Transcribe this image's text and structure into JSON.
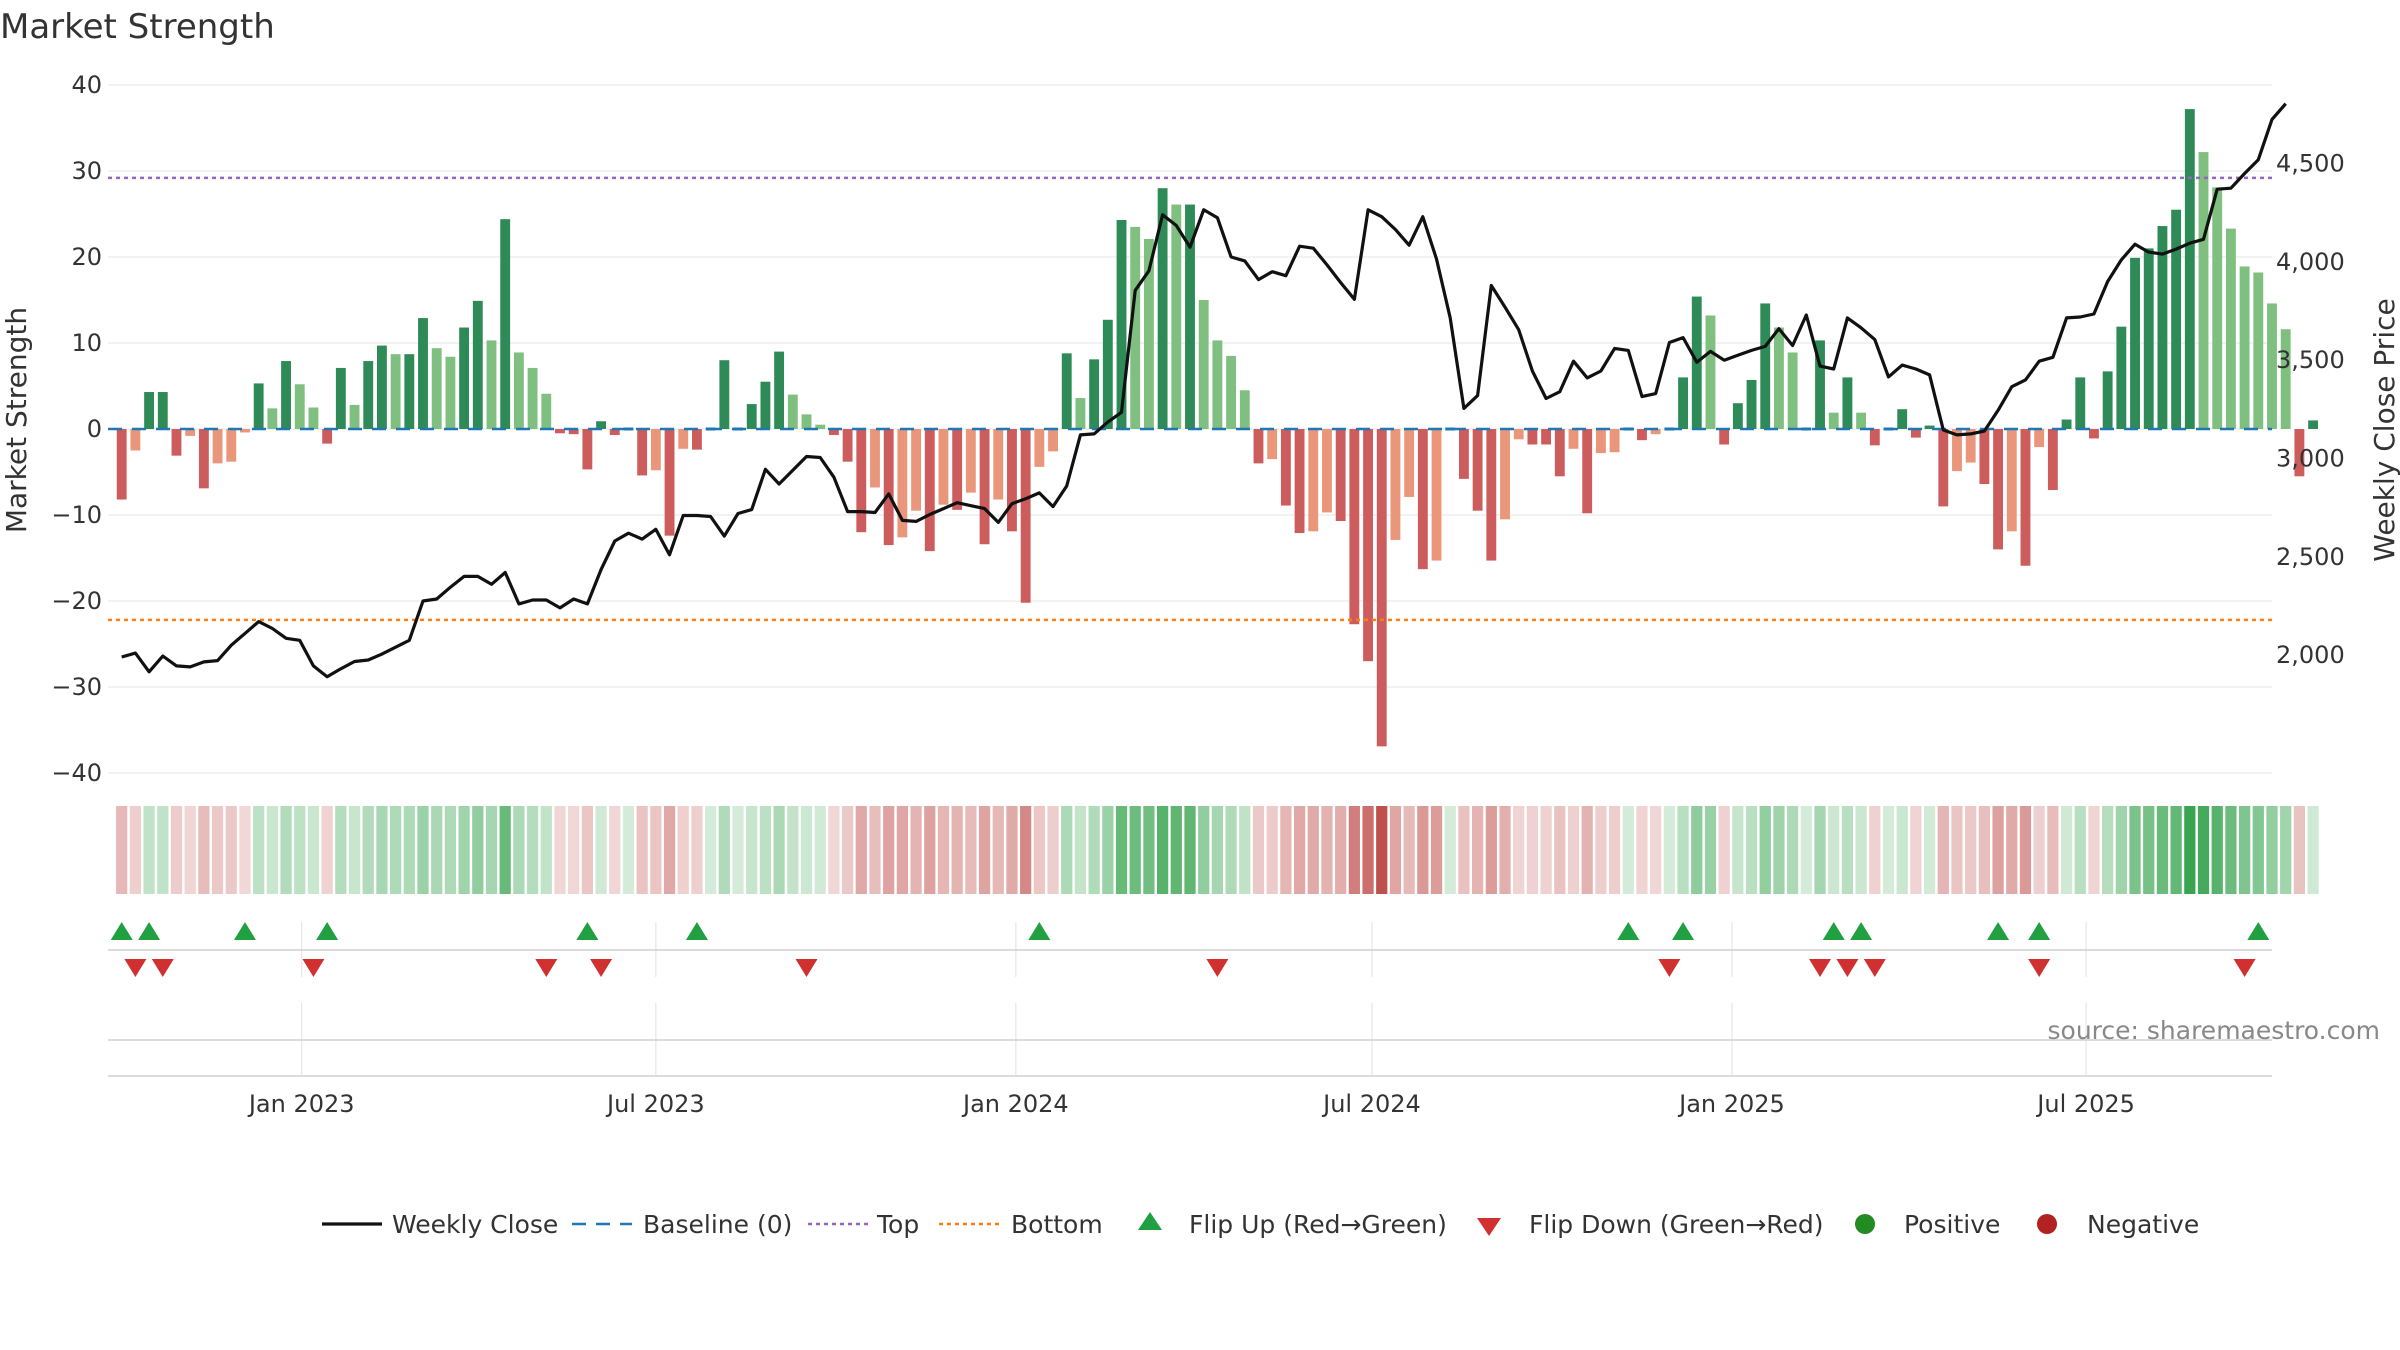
{
  "chart_data": {
    "type": "bar",
    "title": "Market Strength",
    "ylabel": "Market Strength",
    "y2label": "Weekly Close Price",
    "source_text": "source: sharemaestro.com",
    "ylim": [
      -40,
      40
    ],
    "y2lim": [
      1400,
      4900
    ],
    "yticks": [
      40,
      30,
      20,
      10,
      0,
      -10,
      -20,
      -30,
      -40
    ],
    "ytick_labels": [
      "40",
      "30",
      "20",
      "10",
      "0",
      "−10",
      "−20",
      "−30",
      "−40"
    ],
    "y2ticks": [
      4500,
      4000,
      3500,
      3000,
      2500,
      2000
    ],
    "y2tick_labels": [
      "4,500",
      "4,000",
      "3,500",
      "3,000",
      "2,500",
      "2,000"
    ],
    "x_start": "2022-09-24",
    "x_end": "2025-10-04",
    "xticks": [
      {
        "date": "2023-01-01",
        "label": "Jan 2023"
      },
      {
        "date": "2023-07-01",
        "label": "Jul 2023"
      },
      {
        "date": "2024-01-01",
        "label": "Jan 2024"
      },
      {
        "date": "2024-07-01",
        "label": "Jul 2024"
      },
      {
        "date": "2025-01-01",
        "label": "Jan 2025"
      },
      {
        "date": "2025-07-01",
        "label": "Jul 2025"
      }
    ],
    "top_level": 29.2,
    "bottom_level": -22.2,
    "first_week": "2022-10-01",
    "strength": [
      -8.2,
      -2.5,
      4.3,
      4.3,
      -3.1,
      -0.8,
      -6.9,
      -4.0,
      -3.8,
      -0.4,
      5.3,
      2.4,
      7.9,
      5.2,
      2.5,
      -1.7,
      7.1,
      2.8,
      7.9,
      9.7,
      8.7,
      8.7,
      12.9,
      9.4,
      8.4,
      11.8,
      14.9,
      10.3,
      24.4,
      8.9,
      7.1,
      4.1,
      -0.5,
      -0.6,
      -4.7,
      0.9,
      -0.7,
      0.0,
      -5.4,
      -4.8,
      -12.4,
      -2.3,
      -2.4,
      0.0,
      8.0,
      0.0,
      2.9,
      5.5,
      9.0,
      4.0,
      1.7,
      0.5,
      -0.7,
      -3.8,
      -12.0,
      -6.8,
      -13.5,
      -12.6,
      -9.5,
      -14.2,
      -8.8,
      -9.4,
      -7.4,
      -13.4,
      -8.2,
      -11.9,
      -20.2,
      -4.4,
      -2.6,
      8.8,
      3.6,
      8.1,
      12.7,
      24.3,
      23.5,
      22.1,
      28.0,
      26.1,
      26.1,
      15.0,
      10.3,
      8.5,
      4.5,
      -4.0,
      -3.5,
      -8.9,
      -12.1,
      -11.9,
      -9.7,
      -10.7,
      -22.7,
      -27.0,
      -36.9,
      -12.9,
      -7.9,
      -16.3,
      -15.3,
      0.0,
      -5.8,
      -9.5,
      -15.3,
      -10.5,
      -1.2,
      -1.8,
      -1.8,
      -5.5,
      -2.3,
      -9.8,
      -2.8,
      -2.7,
      0.0,
      -1.3,
      -0.6,
      0.0,
      6.0,
      15.4,
      13.2,
      -1.8,
      3.0,
      5.7,
      14.6,
      11.8,
      8.9,
      0.0,
      10.3,
      1.9,
      6.0,
      1.9,
      -1.9,
      0.0,
      2.3,
      -1.0,
      0.4,
      -9.0,
      -4.9,
      -3.9,
      -6.4,
      -14.0,
      -11.9,
      -15.9,
      -2.1,
      -7.1,
      1.1,
      6.0,
      -1.1,
      6.7,
      11.9,
      19.9,
      21.0,
      23.6,
      25.5,
      37.2,
      32.2,
      28.1,
      23.3,
      18.9,
      18.2,
      14.6,
      11.6,
      -5.5,
      1.0
    ],
    "close_series": {
      "name": "Weekly Close",
      "first_week": "2022-10-01",
      "values": [
        1990,
        2010,
        1915,
        1995,
        1945,
        1940,
        1965,
        1972,
        2050,
        2110,
        2170,
        2135,
        2085,
        2075,
        1945,
        1890,
        1930,
        1967,
        1975,
        2005,
        2040,
        2075,
        2275,
        2285,
        2345,
        2400,
        2400,
        2360,
        2420,
        2260,
        2280,
        2280,
        2240,
        2285,
        2260,
        2435,
        2580,
        2620,
        2590,
        2640,
        2510,
        2710,
        2710,
        2705,
        2605,
        2720,
        2740,
        2945,
        2870,
        2940,
        3010,
        3005,
        2905,
        2730,
        2730,
        2725,
        2820,
        2685,
        2680,
        2715,
        2745,
        2775,
        2760,
        2745,
        2675,
        2770,
        2795,
        2825,
        2755,
        2860,
        3120,
        3125,
        3185,
        3235,
        3855,
        3955,
        4240,
        4185,
        4075,
        4265,
        4225,
        4025,
        4005,
        3910,
        3950,
        3930,
        4080,
        4070,
        3985,
        3895,
        3810,
        4265,
        4230,
        4165,
        4085,
        4230,
        4015,
        3715,
        3255,
        3320,
        3880,
        3770,
        3655,
        3445,
        3305,
        3340,
        3495,
        3410,
        3445,
        3560,
        3550,
        3315,
        3330,
        3590,
        3615,
        3490,
        3545,
        3500,
        3525,
        3550,
        3570,
        3660,
        3575,
        3730,
        3470,
        3455,
        3715,
        3665,
        3605,
        3415,
        3475,
        3455,
        3425,
        3145,
        3120,
        3125,
        3140,
        3245,
        3365,
        3400,
        3495,
        3515,
        3715,
        3720,
        3735,
        3900,
        4010,
        4090,
        4050,
        4040,
        4065,
        4095,
        4115,
        4370,
        4375,
        4450,
        4520,
        4725,
        4805
      ]
    },
    "flip_up_weeks": [
      0,
      2,
      9,
      15,
      34,
      42,
      67,
      110,
      114,
      125,
      127,
      137,
      140,
      156
    ],
    "flip_down_weeks": [
      1,
      3,
      14,
      31,
      35,
      50,
      80,
      113,
      124,
      126,
      128,
      140,
      155
    ],
    "legend": [
      "Weekly Close",
      "Baseline (0)",
      "Top",
      "Bottom",
      "Flip Up (Red→Green)",
      "Flip Down (Green→Red)",
      "Positive",
      "Negative"
    ],
    "colors": {
      "pos_strong": "#2e8b57",
      "pos_light": "#7fbf7f",
      "neg_strong": "#cd5c5c",
      "neg_light": "#e9967a",
      "close_line": "#111111",
      "baseline": "#1f77b4",
      "top_line": "#9467bd",
      "bottom_line": "#ff7f0e",
      "flip_up": "#20a040",
      "flip_down": "#d03030",
      "positive": "#228b22",
      "negative": "#b22222"
    }
  }
}
